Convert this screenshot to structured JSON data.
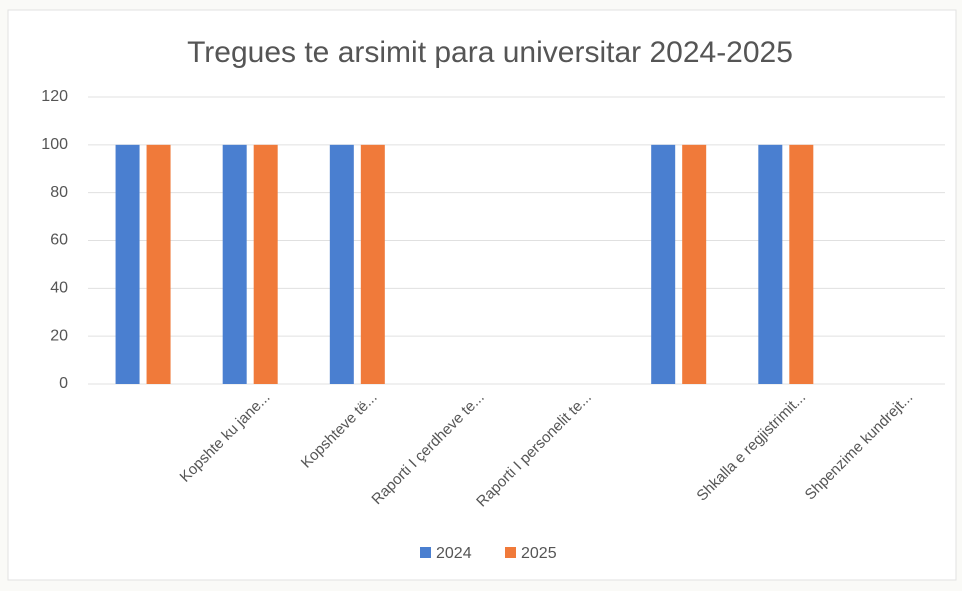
{
  "chart_data": {
    "type": "bar",
    "title": "Tregues te arsimit para universitar 2024-2025",
    "categories": [
      null,
      "Kopshte ku jane...",
      "Kopshteve të...",
      "Raporti I çerdheve te...",
      "Raporti I personelit te...",
      null,
      "Shkalla e regjistrimit...",
      "Shpenzime kundrejt..."
    ],
    "series": [
      {
        "name": "2024",
        "color": "#4a7fd0",
        "values": [
          100,
          100,
          100,
          null,
          null,
          100,
          100,
          null
        ]
      },
      {
        "name": "2025",
        "color": "#f07a3a",
        "values": [
          100,
          100,
          100,
          null,
          null,
          100,
          100,
          null
        ]
      }
    ],
    "ylim": [
      0,
      120
    ],
    "yticks": [
      0,
      20,
      40,
      60,
      80,
      100,
      120
    ],
    "grid": true,
    "legend": "bottom"
  }
}
